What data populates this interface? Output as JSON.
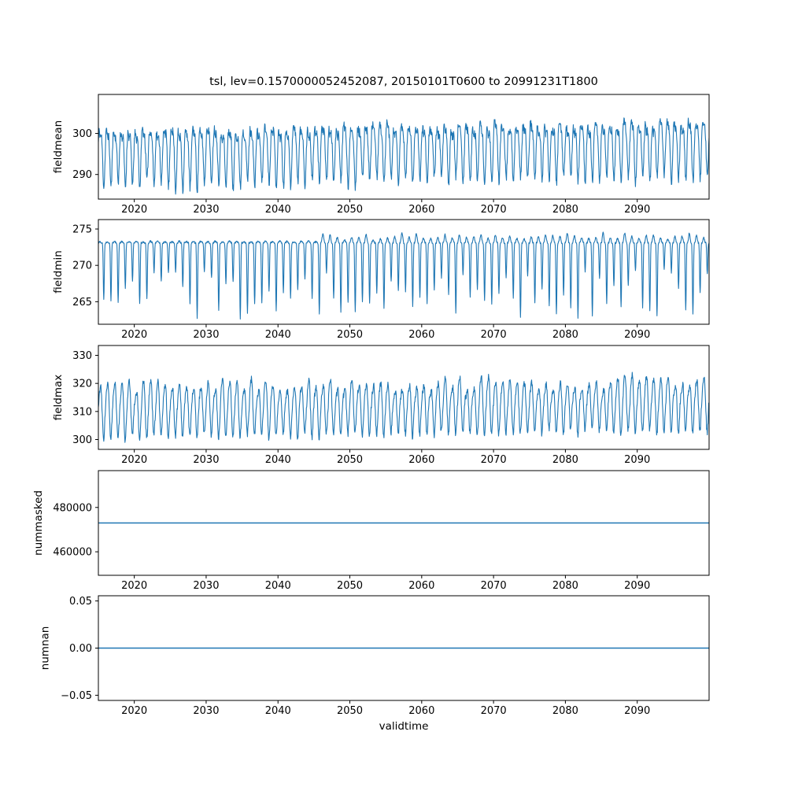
{
  "title": "tsl, lev=0.1570000052452087, 20150101T0600 to 20991231T1800",
  "xlabel": "validtime",
  "style": {
    "line_color": "#1f77b4",
    "axis_color": "#000000",
    "background": "#ffffff"
  },
  "chart_data": {
    "type": "line",
    "legend": "none",
    "grid": false,
    "x_axis": {
      "label": "validtime",
      "range": [
        2015,
        2100
      ],
      "ticks": [
        {
          "value": 2020,
          "label": "2020"
        },
        {
          "value": 2030,
          "label": "2030"
        },
        {
          "value": 2040,
          "label": "2040"
        },
        {
          "value": 2050,
          "label": "2050"
        },
        {
          "value": 2060,
          "label": "2060"
        },
        {
          "value": 2070,
          "label": "2070"
        },
        {
          "value": 2080,
          "label": "2080"
        },
        {
          "value": 2090,
          "label": "2090"
        }
      ]
    },
    "subplots": [
      {
        "ylabel": "fieldmean",
        "ylim": [
          284,
          309.5
        ],
        "yticks": [
          {
            "value": 290,
            "label": "290"
          },
          {
            "value": 300,
            "label": "300"
          }
        ],
        "description": "Dense annual oscillation between about 285 and 308 with a slight upward trend over 2015-2100",
        "gen": {
          "kind": "seasonal",
          "seed": 11,
          "t0": 2015,
          "t1": 2100,
          "points_per_year": 20,
          "base": 295.5,
          "trend": 2.0,
          "ampP": [
            5.0,
            7.4
          ],
          "ampN": [
            5.0,
            7.4
          ],
          "amp2": 2.2,
          "phase2": 1.3,
          "jitter": 1.2
        }
      },
      {
        "ylabel": "fieldmin",
        "ylim": [
          261.9,
          276.3
        ],
        "yticks": [
          {
            "value": 265,
            "label": "265"
          },
          {
            "value": 270,
            "label": "270"
          },
          {
            "value": 275,
            "label": "275"
          }
        ],
        "description": "Flat top near 273 (freezing point) with sharp yearly downward spikes to 262-270; top rises slightly toward 274-275 after about 2046",
        "gen": {
          "kind": "dips",
          "seed": 22,
          "t0": 2015,
          "t1": 2100,
          "points_per_year": 24,
          "top": 273.1,
          "depth": [
            3.5,
            10.5
          ],
          "sharp": 5,
          "rise_year": 2046,
          "rise": [
            0.8,
            1.6
          ],
          "pre_bump": 0.25,
          "jitter": 0.12
        }
      },
      {
        "ylabel": "fieldmax",
        "ylim": [
          296.5,
          333.5
        ],
        "yticks": [
          {
            "value": 300,
            "label": "300"
          },
          {
            "value": 310,
            "label": "310"
          },
          {
            "value": 320,
            "label": "320"
          },
          {
            "value": 330,
            "label": "330"
          }
        ],
        "description": "Annual oscillation, lower envelope near 300-305 and upper peaks 318-331, slight upward trend",
        "gen": {
          "kind": "seasonal",
          "seed": 33,
          "t0": 2015,
          "t1": 2100,
          "points_per_year": 20,
          "base": 309,
          "trend": 2.5,
          "ampP": [
            8,
            14
          ],
          "ampN": [
            5,
            7
          ],
          "amp2": 2.5,
          "phase2": 2.0,
          "jitter": 1.2
        }
      },
      {
        "ylabel": "nummasked",
        "ylim": [
          449400,
          496600
        ],
        "yticks": [
          {
            "value": 460000,
            "label": "460000"
          },
          {
            "value": 480000,
            "label": "480000"
          }
        ],
        "description": "Constant number of masked points for the whole period",
        "gen": {
          "kind": "constant",
          "value": 473000
        }
      },
      {
        "ylabel": "numnan",
        "ylim": [
          -0.0555,
          0.0555
        ],
        "yticks": [
          {
            "value": 0.05,
            "label": "0.05"
          },
          {
            "value": 0.0,
            "label": "0.00"
          },
          {
            "value": -0.05,
            "label": "−0.05"
          }
        ],
        "description": "Constant zero NaN count for the whole period",
        "gen": {
          "kind": "constant",
          "value": 0
        }
      }
    ]
  }
}
